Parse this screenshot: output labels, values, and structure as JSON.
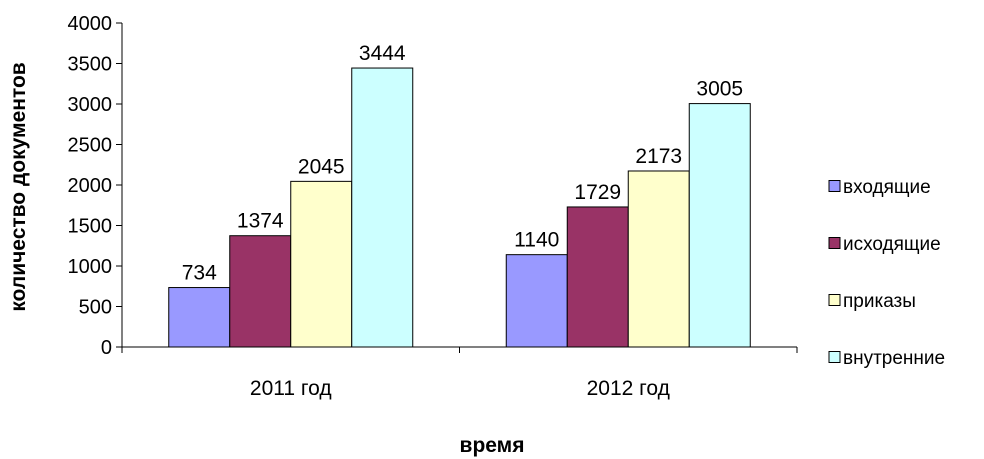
{
  "chart_data": {
    "type": "bar",
    "title": "",
    "xlabel": "время",
    "ylabel": "количество документов",
    "categories": [
      "2011 год",
      "2012 год"
    ],
    "ylim": [
      0,
      4000
    ],
    "yticks": [
      0,
      500,
      1000,
      1500,
      2000,
      2500,
      3000,
      3500,
      4000
    ],
    "grid": false,
    "legend_position": "right",
    "series": [
      {
        "name": "входящие",
        "values": [
          734,
          1140
        ],
        "color": "#9999ff"
      },
      {
        "name": "исходящие",
        "values": [
          1374,
          1729
        ],
        "color": "#993366"
      },
      {
        "name": "приказы",
        "values": [
          2045,
          2173
        ],
        "color": "#ffffcc"
      },
      {
        "name": "внутренние",
        "values": [
          3444,
          3005
        ],
        "color": "#ccffff"
      }
    ]
  }
}
